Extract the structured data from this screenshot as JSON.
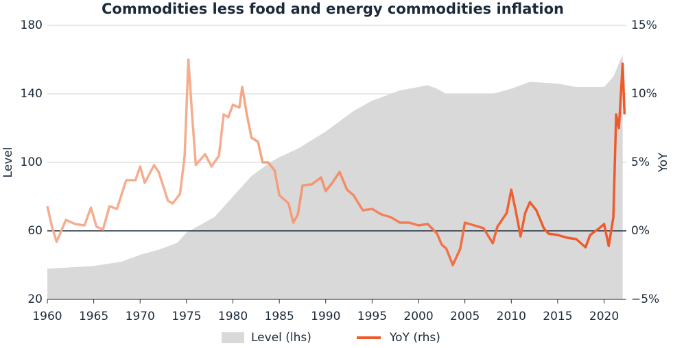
{
  "chart_data": {
    "type": "line",
    "title": "Commodities less food and energy commodities inflation",
    "y_label": "Level",
    "y2_label": "YoY",
    "xlim": [
      1960,
      2022.4
    ],
    "xticks": [
      1960,
      1965,
      1970,
      1975,
      1980,
      1985,
      1990,
      1995,
      2000,
      2005,
      2010,
      2015,
      2020
    ],
    "ylim": [
      20,
      180
    ],
    "yticks": [
      20,
      60,
      100,
      140,
      180
    ],
    "y2lim": [
      -5,
      15
    ],
    "y2ticks": [
      {
        "value": -5,
        "label": "−5%"
      },
      {
        "value": 0,
        "label": "0%"
      },
      {
        "value": 5,
        "label": "5%"
      },
      {
        "value": 10,
        "label": "10%"
      },
      {
        "value": 15,
        "label": "15%"
      }
    ],
    "grid": true,
    "series": [
      {
        "name": "Level (lhs)",
        "kind": "area",
        "color": "#d9d9d9",
        "x": [
          1960,
          1962,
          1965,
          1968,
          1970,
          1972,
          1974,
          1975,
          1976,
          1978,
          1980,
          1982,
          1984,
          1985,
          1987,
          1990,
          1993,
          1995,
          1998,
          2000,
          2001,
          2002,
          2003,
          2005,
          2008,
          2010,
          2012,
          2015,
          2017,
          2019,
          2020,
          2021,
          2022
        ],
        "values": [
          38,
          38.5,
          39.5,
          42,
          46,
          49,
          53,
          59,
          62,
          68,
          80,
          92,
          100,
          103,
          108,
          118,
          130,
          136,
          142,
          144,
          145,
          143,
          140,
          140,
          140,
          143,
          147,
          146,
          144,
          144,
          144,
          150,
          163
        ]
      },
      {
        "name": "YoY (rhs)",
        "kind": "line",
        "axis": "y2",
        "color": "#ee5a2a",
        "colors": [
          "#f5ad8e",
          "#ee5a2a"
        ],
        "x": [
          1960,
          1960.5,
          1961,
          1962,
          1963,
          1964,
          1964.7,
          1965.3,
          1966,
          1966.7,
          1967.5,
          1968.5,
          1969.5,
          1970,
          1970.5,
          1971.5,
          1972,
          1973,
          1973.5,
          1974.3,
          1974.8,
          1975.2,
          1975.6,
          1976,
          1977,
          1977.7,
          1978.5,
          1979,
          1979.5,
          1980,
          1980.7,
          1981,
          1981.5,
          1982,
          1982.7,
          1983.2,
          1983.8,
          1984.5,
          1985,
          1986,
          1986.5,
          1987,
          1987.5,
          1988.5,
          1989.5,
          1990,
          1990.7,
          1991.5,
          1992.3,
          1993,
          1994,
          1995,
          1996,
          1997,
          1998,
          1999,
          2000,
          2001,
          2002,
          2002.5,
          2003,
          2003.7,
          2004.5,
          2005,
          2006,
          2007,
          2008,
          2008.5,
          2009.5,
          2010,
          2010.5,
          2011,
          2011.5,
          2012,
          2012.7,
          2013.5,
          2014,
          2015,
          2016,
          2017,
          2018,
          2018.5,
          2019.5,
          2020,
          2020.5,
          2021,
          2021.3,
          2021.6,
          2022,
          2022.2
        ],
        "values": [
          1.8,
          0.3,
          -0.8,
          0.8,
          0.5,
          0.4,
          1.7,
          0.3,
          0.1,
          1.8,
          1.6,
          3.7,
          3.7,
          4.7,
          3.5,
          4.8,
          4.3,
          2.2,
          2.0,
          2.7,
          5.5,
          12.5,
          8.5,
          4.8,
          5.6,
          4.7,
          5.5,
          8.5,
          8.3,
          9.2,
          9.0,
          10.5,
          8.5,
          6.8,
          6.5,
          5.0,
          5.0,
          4.4,
          2.6,
          2.0,
          0.6,
          1.2,
          3.3,
          3.4,
          3.9,
          2.9,
          3.5,
          4.3,
          3.0,
          2.6,
          1.5,
          1.6,
          1.2,
          1.0,
          0.6,
          0.6,
          0.4,
          0.5,
          -0.2,
          -1.0,
          -1.3,
          -2.5,
          -1.3,
          0.6,
          0.4,
          0.2,
          -0.9,
          0.3,
          1.3,
          3.0,
          1.4,
          -0.4,
          1.3,
          2.1,
          1.5,
          0.2,
          -0.2,
          -0.3,
          -0.5,
          -0.6,
          -1.2,
          -0.3,
          0.2,
          0.5,
          -1.1,
          1.0,
          8.5,
          7.5,
          12.2,
          8.5
        ]
      }
    ]
  }
}
